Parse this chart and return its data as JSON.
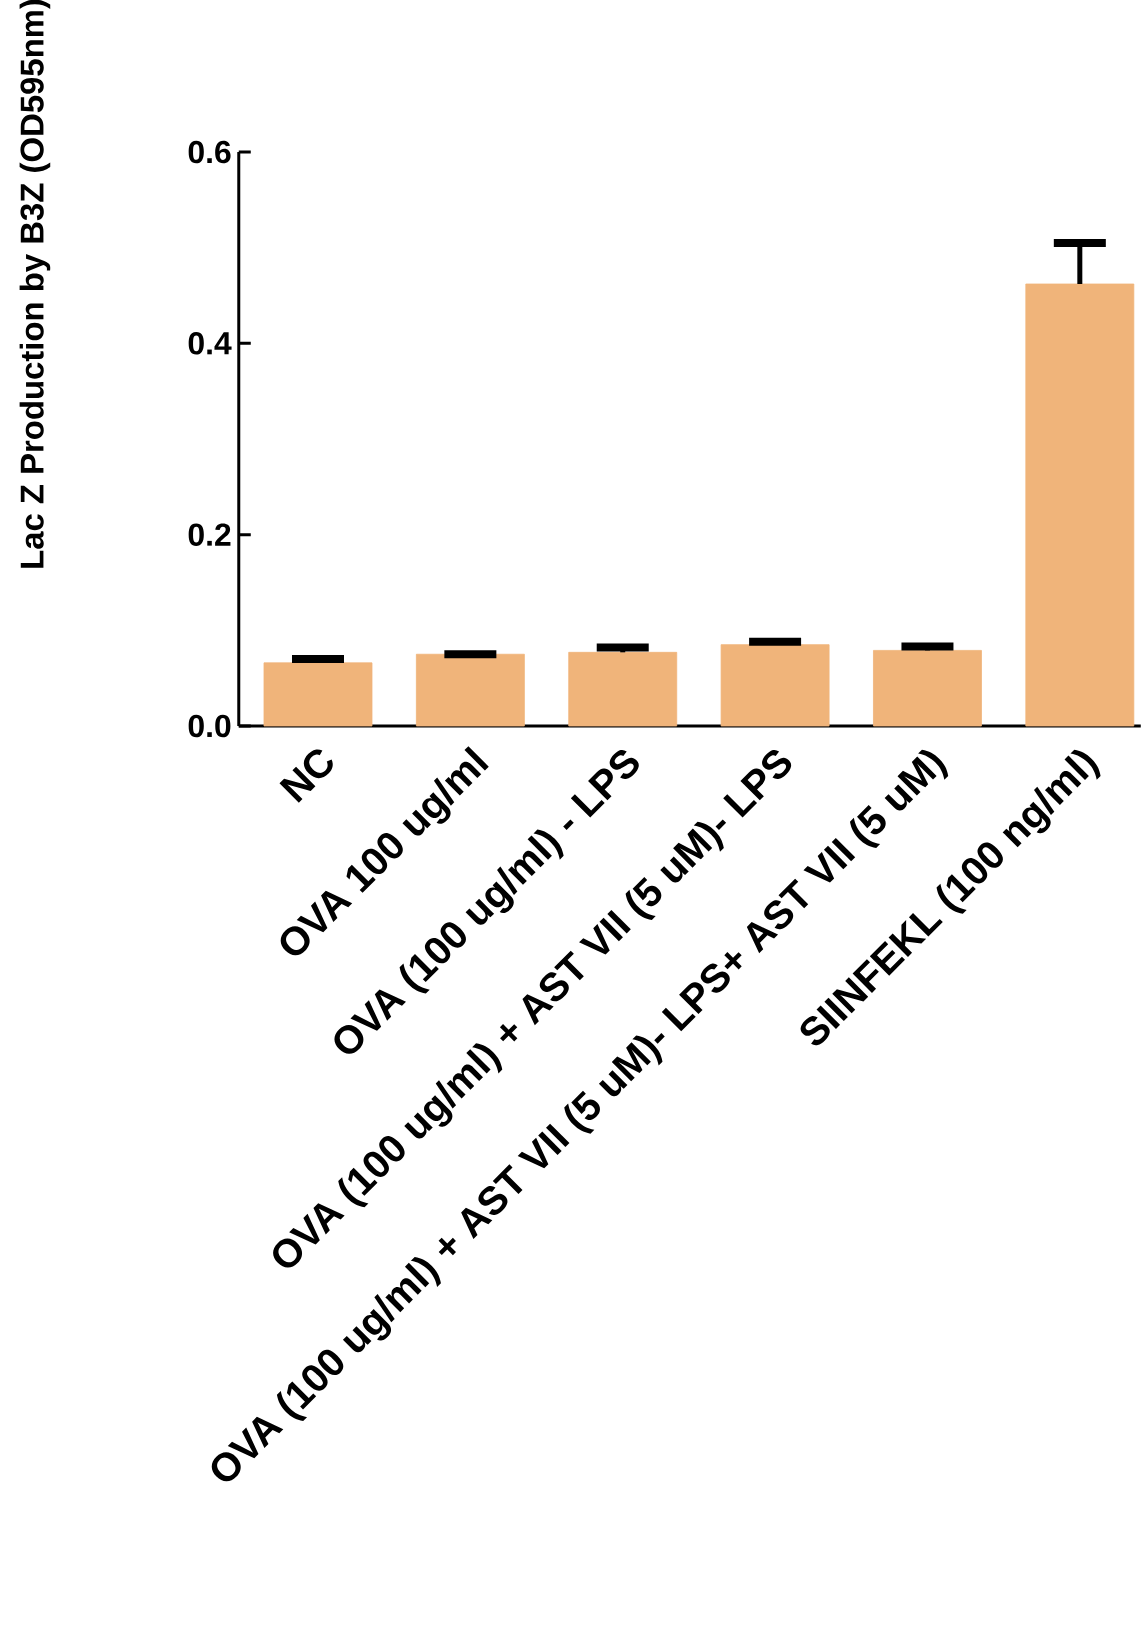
{
  "chart_data": {
    "type": "bar",
    "ylabel": "Lac Z Production by B3Z (OD595nm)",
    "categories": [
      "NC",
      "OVA 100 ug/ml",
      "OVA (100 ug/ml) - LPS",
      "OVA (100 ug/ml) + AST VII (5 uM)- LPS",
      "OVA (100 ug/ml) + AST VII (5 uM)- LPS+ AST VII (5 uM)",
      "SIINFEKL (100 ng/ml)"
    ],
    "values": [
      0.066,
      0.075,
      0.077,
      0.085,
      0.079,
      0.462
    ],
    "errors": [
      0.004,
      null,
      0.005,
      0.003,
      0.004,
      0.043
    ],
    "color": "#f0b47a",
    "ylim": [
      0,
      0.6
    ],
    "yticks": [
      {
        "value": 0,
        "label": "0.0"
      },
      {
        "value": 0.2,
        "label": "0.2"
      },
      {
        "value": 0.4,
        "label": "0.4"
      },
      {
        "value": 0.6,
        "label": "0.6"
      }
    ],
    "grid": false
  }
}
